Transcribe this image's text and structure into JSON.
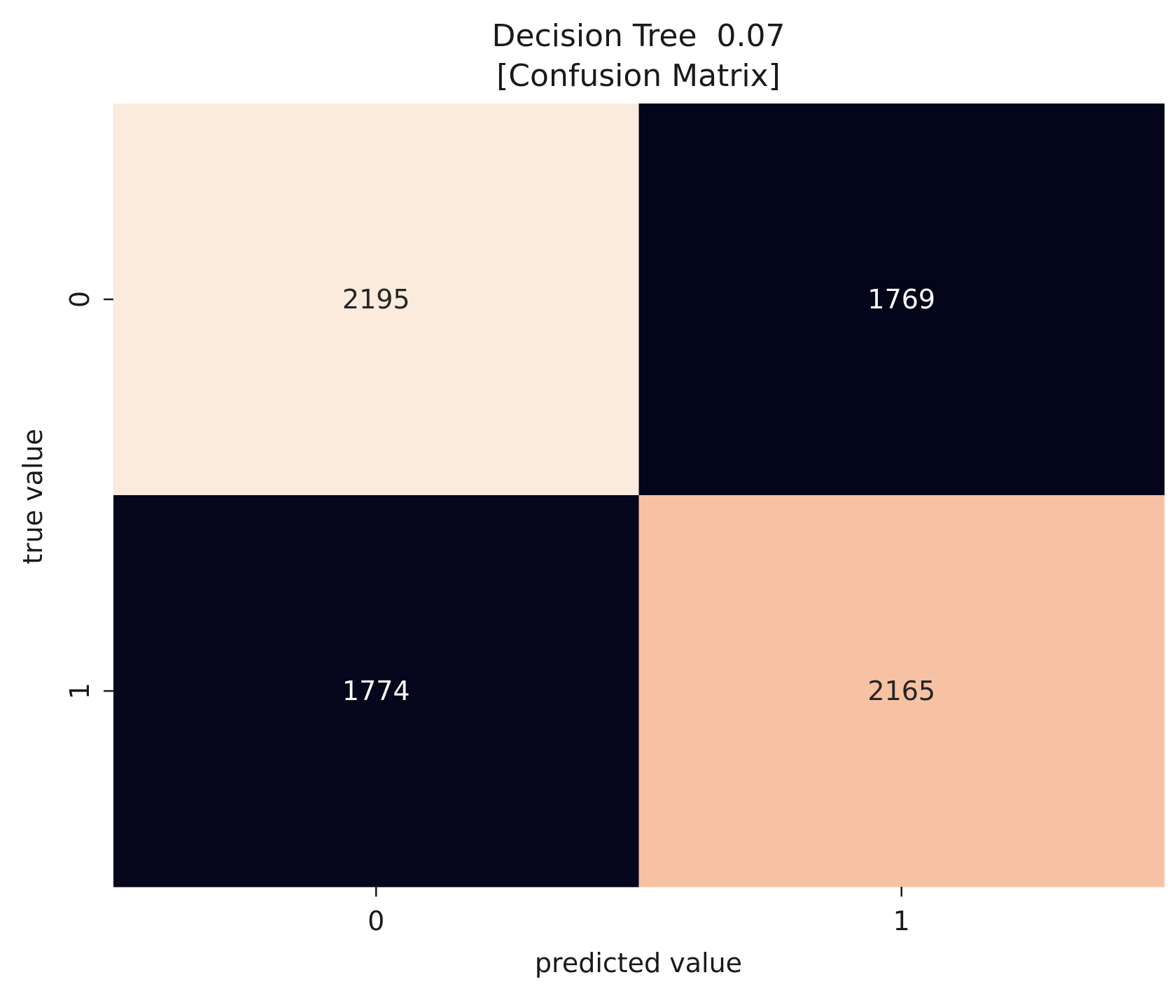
{
  "chart_data": {
    "type": "heatmap",
    "title": "Decision Tree  0.07",
    "subtitle": "[Confusion Matrix]",
    "xlabel": "predicted value",
    "ylabel": "true value",
    "x_categories": [
      "0",
      "1"
    ],
    "y_categories": [
      "0",
      "1"
    ],
    "values": [
      [
        2195,
        1769
      ],
      [
        1774,
        2165
      ]
    ],
    "colorscale": "rocket",
    "colorbar": false,
    "colors": {
      "low": "#03051a",
      "high": "#faebdd",
      "text_dark": "#262626",
      "text_light": "#ffffff"
    }
  }
}
